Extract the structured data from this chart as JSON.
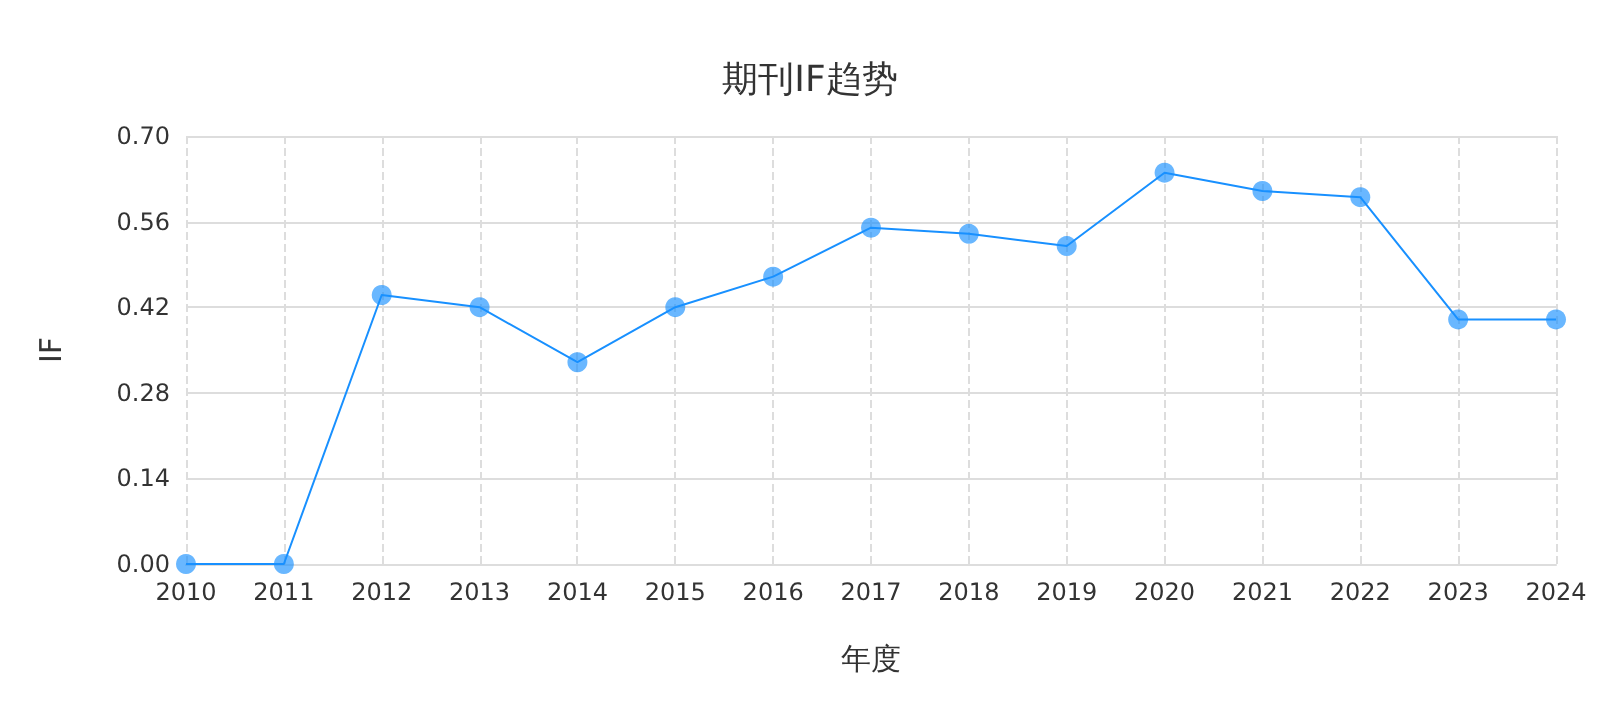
{
  "chart_data": {
    "type": "line",
    "title": "期刊IF趋势",
    "xlabel": "年度",
    "ylabel": "IF",
    "categories": [
      "2010",
      "2011",
      "2012",
      "2013",
      "2014",
      "2015",
      "2016",
      "2017",
      "2018",
      "2019",
      "2020",
      "2021",
      "2022",
      "2023",
      "2024"
    ],
    "series": [
      {
        "color": "#1890ff",
        "values": [
          0,
          0,
          0.44,
          0.42,
          0.33,
          0.42,
          0.47,
          0.55,
          0.54,
          0.52,
          0.64,
          0.61,
          0.6,
          0.4,
          0.4
        ]
      }
    ],
    "ylim": [
      0,
      0.7
    ],
    "yticks": [
      {
        "value": 0,
        "label": "0.00"
      },
      {
        "value": 0.14,
        "label": "0.14"
      },
      {
        "value": 0.28,
        "label": "0.28"
      },
      {
        "value": 0.42,
        "label": "0.42"
      },
      {
        "value": 0.56,
        "label": "0.56"
      },
      {
        "value": 0.7,
        "label": "0.70"
      }
    ],
    "grid": true,
    "marker": "circle",
    "line_style": "solid"
  }
}
